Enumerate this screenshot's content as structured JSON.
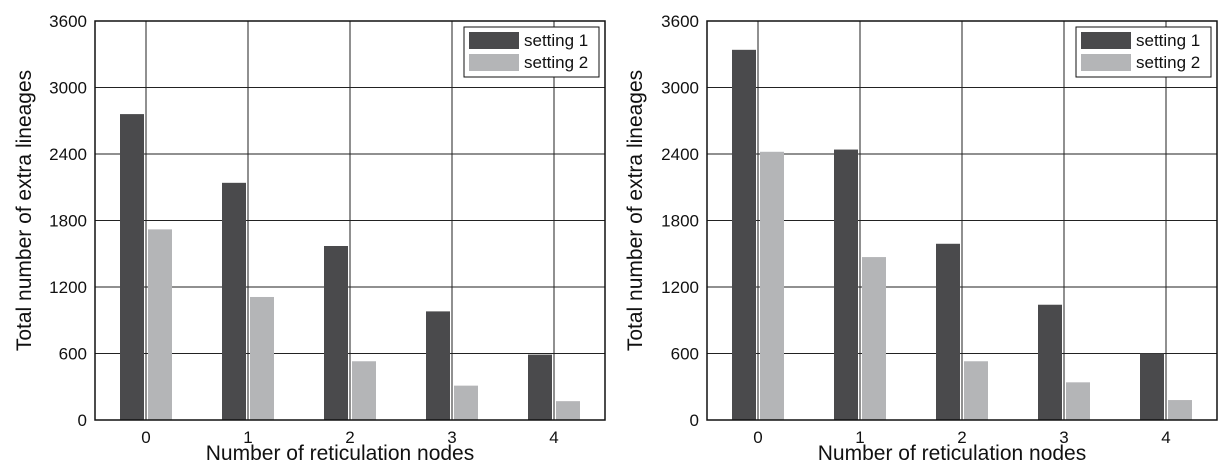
{
  "chart_data": [
    {
      "type": "bar",
      "xlabel": "Number of reticulation nodes",
      "ylabel": "Total number of extra lineages",
      "categories": [
        "0",
        "1",
        "2",
        "3",
        "4"
      ],
      "ylim": [
        0,
        3600
      ],
      "yticks": [
        0,
        600,
        1200,
        1800,
        2400,
        3000,
        3600
      ],
      "grid": true,
      "legend": "top-right",
      "series": [
        {
          "name": "setting 1",
          "color": "#4a4a4c",
          "values": [
            2760,
            2140,
            1570,
            980,
            590
          ]
        },
        {
          "name": "setting 2",
          "color": "#b4b5b7",
          "values": [
            1720,
            1110,
            530,
            310,
            170
          ]
        }
      ]
    },
    {
      "type": "bar",
      "xlabel": "Number of reticulation nodes",
      "ylabel": "Total number of extra lineages",
      "categories": [
        "0",
        "1",
        "2",
        "3",
        "4"
      ],
      "ylim": [
        0,
        3600
      ],
      "yticks": [
        0,
        600,
        1200,
        1800,
        2400,
        3000,
        3600
      ],
      "grid": true,
      "legend": "top-right",
      "series": [
        {
          "name": "setting 1",
          "color": "#4a4a4c",
          "values": [
            3340,
            2440,
            1590,
            1040,
            600
          ]
        },
        {
          "name": "setting 2",
          "color": "#b4b5b7",
          "values": [
            2420,
            1470,
            530,
            340,
            180
          ]
        }
      ]
    }
  ]
}
